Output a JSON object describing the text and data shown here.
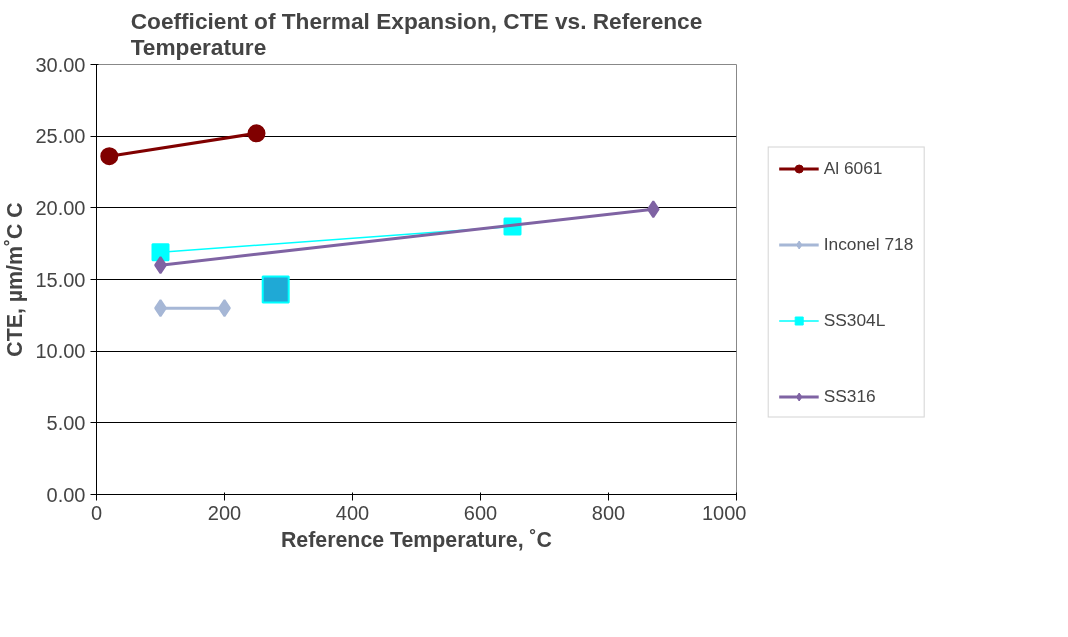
{
  "chart_data": {
    "type": "line",
    "title": "Coefficient of Thermal Expansion, CTE vs. Reference Temperature",
    "xlabel": "Reference Temperature, ˚C",
    "ylabel": "CTE, µm/m˚C C",
    "series": [
      {
        "type": "scatter",
        "color": "#1fa9d6",
        "marker": "square",
        "x": [
          280
        ],
        "values": [
          14.3
        ]
      },
      {
        "name": "Al 6061",
        "color": "#800000",
        "marker": "circle",
        "x": [
          20,
          250
        ],
        "values": [
          23.6,
          25.2
        ]
      },
      {
        "name": "Inconel 718",
        "color": "#a6b7d6",
        "marker": "diamond",
        "x": [
          100,
          200
        ],
        "values": [
          13.0,
          13.0
        ]
      },
      {
        "name": "SS304L",
        "color": "#00ffff",
        "marker": "square",
        "x": [
          100,
          650
        ],
        "values": [
          16.9,
          18.7
        ]
      },
      {
        "name": "SS316",
        "color": "#7f63a3",
        "marker": "diamond",
        "x": [
          100,
          870
        ],
        "values": [
          16.0,
          19.9
        ]
      }
    ],
    "xlim": [
      0,
      1000
    ],
    "xticks": [
      0,
      200,
      400,
      600,
      800,
      1000
    ],
    "ylim": [
      0,
      30
    ],
    "yticks": [
      {
        "value": 0,
        "label": "0.00"
      },
      {
        "value": 5,
        "label": "5.00"
      },
      {
        "value": 10,
        "label": "10.00"
      },
      {
        "value": 15,
        "label": "15.00"
      },
      {
        "value": 20,
        "label": "20.00"
      },
      {
        "value": 25,
        "label": "25.00"
      },
      {
        "value": 30,
        "label": "30.00"
      }
    ],
    "grid": "y",
    "legend": "right",
    "line_style": "solid"
  }
}
